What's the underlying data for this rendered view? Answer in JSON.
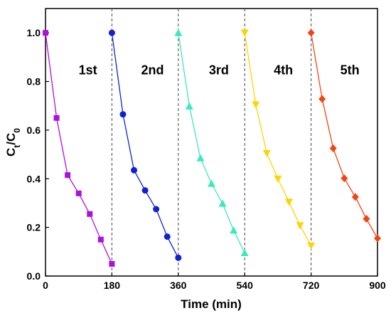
{
  "chart_data": {
    "type": "line",
    "xlabel": "Time (min)",
    "ylabel_main": "C",
    "ylabel_sub1": "t",
    "ylabel_sep": "/C",
    "ylabel_sub2": "0",
    "xlim": [
      0,
      900
    ],
    "ylim": [
      0,
      1.1
    ],
    "xticks": [
      0,
      180,
      360,
      540,
      720,
      900
    ],
    "xtick_labels": [
      "0",
      "180",
      "360",
      "540",
      "720",
      "900"
    ],
    "yticks": [
      0,
      0.2,
      0.4,
      0.6,
      0.8,
      1.0
    ],
    "ytick_labels": [
      "0.0",
      "0.2",
      "0.4",
      "0.6",
      "0.8",
      "1.0"
    ],
    "cycle_dividers": [
      180,
      360,
      540,
      720
    ],
    "series": [
      {
        "label": "1st",
        "label_pos": [
          115,
          0.83
        ],
        "color": "#aa11dd",
        "marker": "square",
        "x": [
          0,
          30,
          60,
          90,
          120,
          150,
          180
        ],
        "y": [
          1.0,
          0.65,
          0.415,
          0.34,
          0.255,
          0.15,
          0.05
        ]
      },
      {
        "label": "2nd",
        "label_pos": [
          290,
          0.83
        ],
        "color": "#1022d0",
        "marker": "circle",
        "x": [
          180,
          210,
          240,
          270,
          300,
          330,
          360
        ],
        "y": [
          1.0,
          0.665,
          0.435,
          0.352,
          0.275,
          0.162,
          0.075
        ]
      },
      {
        "label": "3rd",
        "label_pos": [
          470,
          0.83
        ],
        "color": "#3be8c0",
        "marker": "triangle-up",
        "x": [
          360,
          390,
          420,
          450,
          480,
          510,
          540
        ],
        "y": [
          1.0,
          0.698,
          0.485,
          0.38,
          0.298,
          0.188,
          0.095
        ]
      },
      {
        "label": "4th",
        "label_pos": [
          645,
          0.83
        ],
        "color": "#ffd400",
        "marker": "triangle-down",
        "x": [
          540,
          570,
          600,
          630,
          660,
          690,
          720
        ],
        "y": [
          1.0,
          0.705,
          0.505,
          0.4,
          0.305,
          0.208,
          0.125
        ]
      },
      {
        "label": "5th",
        "label_pos": [
          825,
          0.83
        ],
        "color": "#f24512",
        "marker": "diamond",
        "x": [
          720,
          750,
          780,
          810,
          840,
          870,
          900
        ],
        "y": [
          1.0,
          0.728,
          0.525,
          0.402,
          0.325,
          0.235,
          0.155
        ]
      }
    ]
  }
}
